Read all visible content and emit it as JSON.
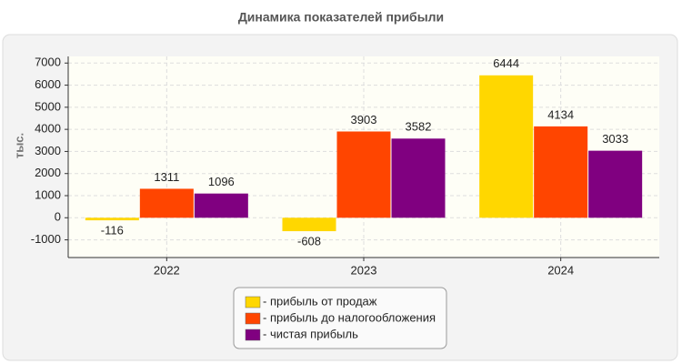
{
  "chart_data": {
    "type": "bar",
    "title": "Динамика показателей прибыли",
    "y_label": "тыс.",
    "categories": [
      "2022",
      "2023",
      "2024"
    ],
    "series": [
      {
        "name": "- прибыль от продаж",
        "color": "#ffd700",
        "values": [
          -116,
          -608,
          6444
        ]
      },
      {
        "name": "- прибыль до налогообложения",
        "color": "#ff4500",
        "values": [
          1311,
          3903,
          4134
        ]
      },
      {
        "name": "- чистая прибыль",
        "color": "#800080",
        "values": [
          1096,
          3582,
          3033
        ]
      }
    ],
    "ylim": [
      -1800,
      7300
    ],
    "yticks": [
      -1000,
      0,
      1000,
      2000,
      3000,
      4000,
      5000,
      6000,
      7000
    ],
    "grid": true
  }
}
